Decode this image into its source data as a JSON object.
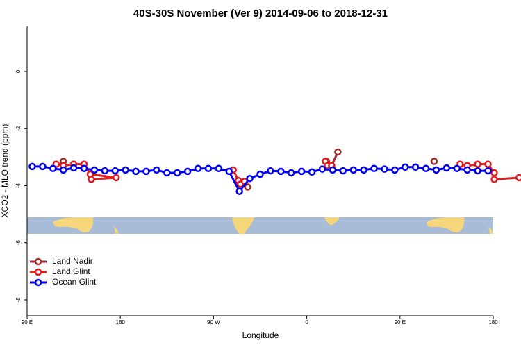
{
  "chart_data": {
    "type": "line",
    "title": "40S-30S November (Ver 9)   2014-09-06 to 2018-12-31",
    "xlabel": "Longitude",
    "ylabel": "XCO2 - MLO trend (ppm)",
    "xlim": [
      90,
      540
    ],
    "ylim": [
      -8.56,
      1.58
    ],
    "xticks": [
      {
        "value": 90,
        "label": "90 E"
      },
      180,
      {
        "value": 270,
        "label": "90 W"
      },
      {
        "value": 360,
        "label": "0"
      },
      {
        "value": 450,
        "label": "90 E"
      },
      {
        "value": 540,
        "label": "180"
      }
    ],
    "yticks": [
      0,
      -2,
      -4,
      -6,
      -8
    ],
    "legend": "bottom-left",
    "series": [
      {
        "name": "Land Nadir",
        "color": "#a52a2a",
        "x": [
          125,
          null,
          300,
          303,
          null,
          379,
          384,
          390,
          null,
          483
        ],
        "values": [
          -3.15,
          null,
          -3.85,
          -4.05,
          null,
          -3.15,
          -3.3,
          -2.82,
          null,
          -3.15
        ]
      },
      {
        "name": "Land Glint",
        "color": "#e41a1c",
        "x": [
          118,
          125,
          135,
          145,
          151,
          176,
          152,
          null,
          289,
          294,
          296,
          300,
          null,
          378,
          380,
          384,
          null,
          508,
          515,
          525,
          535,
          541,
          541,
          565
        ],
        "values": [
          -3.25,
          -3.3,
          -3.25,
          -3.25,
          -3.6,
          -3.72,
          -3.78,
          null,
          -3.45,
          -3.82,
          -3.95,
          -3.85,
          null,
          -3.15,
          -3.3,
          -3.3,
          null,
          -3.25,
          -3.3,
          -3.25,
          -3.25,
          -3.55,
          -3.78,
          -3.72
        ]
      },
      {
        "name": "Ocean Glint",
        "color": "#0000ee",
        "x": [
          95,
          105,
          115,
          125,
          135,
          145,
          155,
          165,
          175,
          185,
          195,
          205,
          215,
          225,
          235,
          245,
          255,
          265,
          275,
          285,
          295,
          305,
          315,
          325,
          335,
          345,
          355,
          365,
          375,
          385,
          395,
          405,
          415,
          425,
          435,
          445,
          455,
          465,
          475,
          485,
          495,
          505,
          515,
          525,
          535
        ],
        "values": [
          -3.33,
          -3.33,
          -3.4,
          -3.45,
          -3.38,
          -3.4,
          -3.45,
          -3.48,
          -3.48,
          -3.45,
          -3.5,
          -3.5,
          -3.45,
          -3.55,
          -3.55,
          -3.5,
          -3.4,
          -3.4,
          -3.4,
          -3.5,
          -4.2,
          -3.75,
          -3.6,
          -3.48,
          -3.5,
          -3.55,
          -3.5,
          -3.52,
          -3.42,
          -3.45,
          -3.48,
          -3.45,
          -3.45,
          -3.4,
          -3.42,
          -3.45,
          -3.35,
          -3.35,
          -3.4,
          -3.45,
          -3.38,
          -3.4,
          -3.45,
          -3.48,
          -3.48
        ]
      }
    ]
  }
}
